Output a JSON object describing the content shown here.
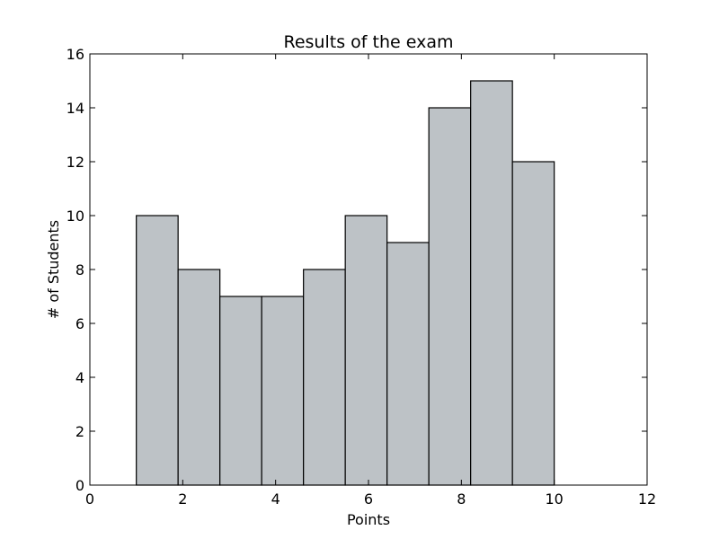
{
  "chart_data": {
    "type": "bar",
    "title": "Results of the exam",
    "xlabel": "Points",
    "ylabel": "# of Students",
    "xlim": [
      0,
      12
    ],
    "ylim": [
      0,
      16
    ],
    "xticks": [
      "0",
      "2",
      "4",
      "6",
      "8",
      "10",
      "12"
    ],
    "yticks": [
      "0",
      "2",
      "4",
      "6",
      "8",
      "10",
      "12",
      "14",
      "16"
    ],
    "grid": false,
    "bar_color": "#bdc2c6",
    "bins": [
      {
        "start": 1.0,
        "end": 1.9,
        "value": 10
      },
      {
        "start": 1.9,
        "end": 2.8,
        "value": 8
      },
      {
        "start": 2.8,
        "end": 3.7,
        "value": 7
      },
      {
        "start": 3.7,
        "end": 4.6,
        "value": 7
      },
      {
        "start": 4.6,
        "end": 5.5,
        "value": 8
      },
      {
        "start": 5.5,
        "end": 6.4,
        "value": 10
      },
      {
        "start": 6.4,
        "end": 7.3,
        "value": 9
      },
      {
        "start": 7.3,
        "end": 8.2,
        "value": 14
      },
      {
        "start": 8.2,
        "end": 9.1,
        "value": 15
      },
      {
        "start": 9.1,
        "end": 10.0,
        "value": 12
      }
    ]
  }
}
